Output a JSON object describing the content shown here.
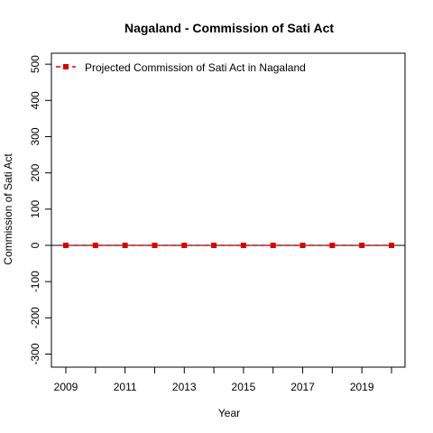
{
  "chart_data": {
    "type": "line",
    "title": "Nagaland  -  Commission of Sati Act",
    "xlabel": "Year",
    "ylabel": "Commission of Sati Act",
    "x": [
      2009,
      2010,
      2011,
      2012,
      2013,
      2014,
      2015,
      2016,
      2017,
      2018,
      2019,
      2020
    ],
    "xlim": [
      2009,
      2020
    ],
    "ylim": [
      -320,
      520
    ],
    "x_ticks": [
      2009,
      2010,
      2011,
      2012,
      2013,
      2014,
      2015,
      2016,
      2017,
      2018,
      2019,
      2020
    ],
    "x_tick_labels": [
      "2009",
      "",
      "2011",
      "",
      "2013",
      "",
      "2015",
      "",
      "2017",
      "",
      "2019",
      ""
    ],
    "y_ticks": [
      -300,
      -200,
      -100,
      0,
      100,
      200,
      300,
      400,
      500
    ],
    "y_tick_labels": [
      "-300",
      "-200",
      "-100",
      "0",
      "100",
      "200",
      "300",
      "400",
      "500"
    ],
    "reference_line_y": 0,
    "grid": false,
    "legend_position": "top-left",
    "series": [
      {
        "name": "Projected  Commission of Sati Act  in  Nagaland",
        "values": [
          0,
          0,
          0,
          0,
          0,
          0,
          0,
          0,
          0,
          0,
          0,
          0
        ],
        "color": "#dd0000",
        "line_style": "dashed",
        "marker": "square"
      }
    ]
  }
}
